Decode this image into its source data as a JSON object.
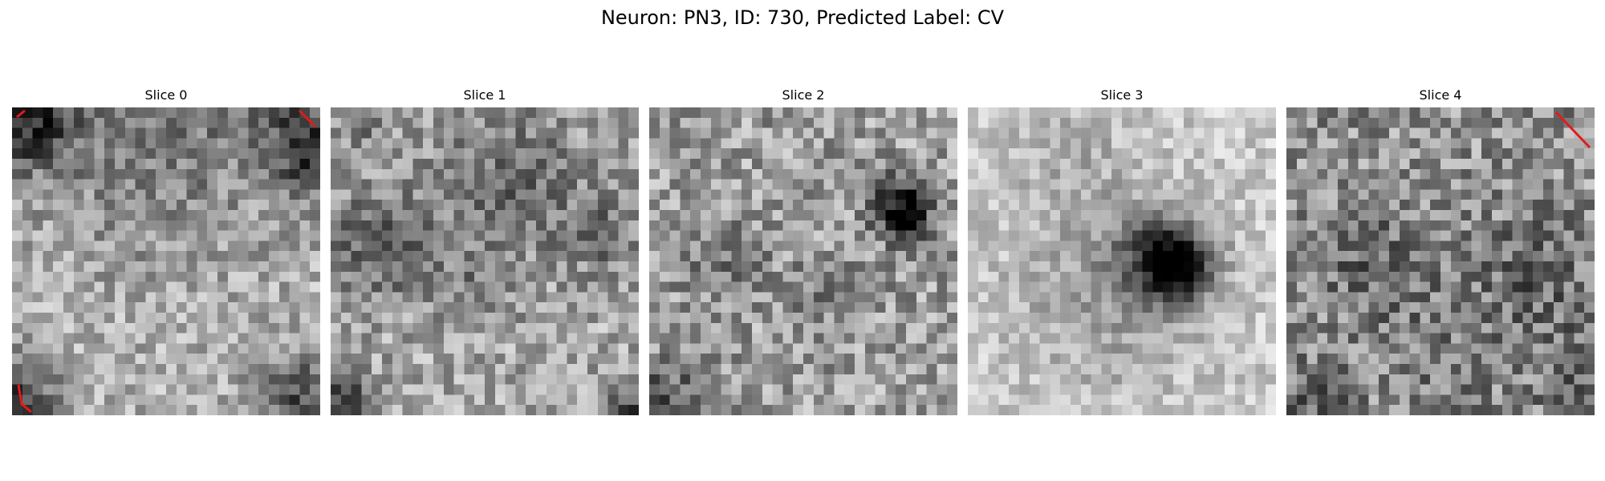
{
  "figure": {
    "title": "Neuron: PN3, ID: 730, Predicted Label: CV"
  },
  "slices": [
    {
      "title": "Slice 0"
    },
    {
      "title": "Slice 1"
    },
    {
      "title": "Slice 2"
    },
    {
      "title": "Slice 3"
    },
    {
      "title": "Slice 4"
    }
  ],
  "colors": {
    "overlay_line": "#e31a1c",
    "colormap": "grayscale"
  }
}
